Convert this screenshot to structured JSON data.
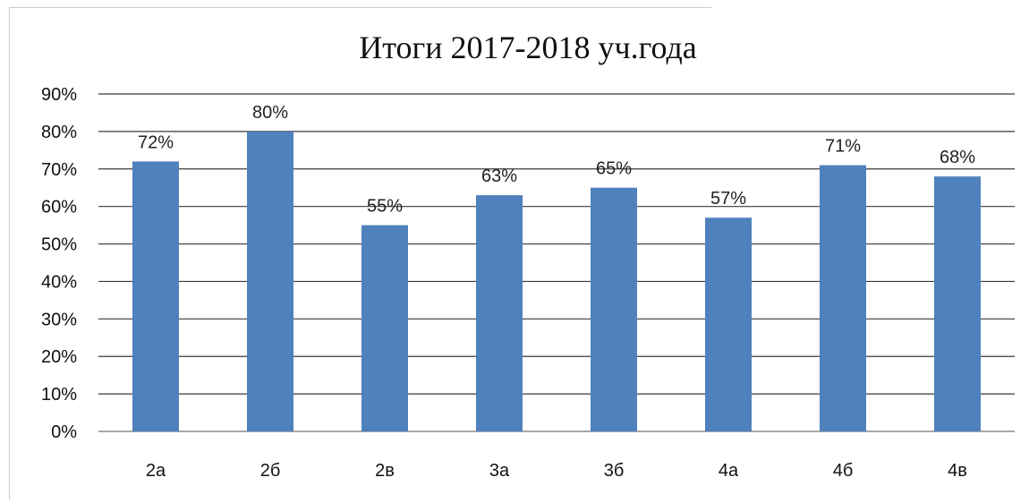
{
  "chart_data": {
    "type": "bar",
    "title": "Итоги 2017-2018 уч.года",
    "categories": [
      "2а",
      "2б",
      "2в",
      "3а",
      "3б",
      "4а",
      "4б",
      "4в"
    ],
    "values": [
      72,
      80,
      55,
      63,
      65,
      57,
      71,
      68
    ],
    "data_labels": [
      "72%",
      "80%",
      "55%",
      "63%",
      "65%",
      "57%",
      "71%",
      "68%"
    ],
    "y_ticks": [
      "0%",
      "10%",
      "20%",
      "30%",
      "40%",
      "50%",
      "60%",
      "70%",
      "80%",
      "90%"
    ],
    "ylim": [
      0,
      90
    ],
    "y_unit": "%",
    "grid": true,
    "legend": "none",
    "bar_color": "#4F81BD"
  }
}
